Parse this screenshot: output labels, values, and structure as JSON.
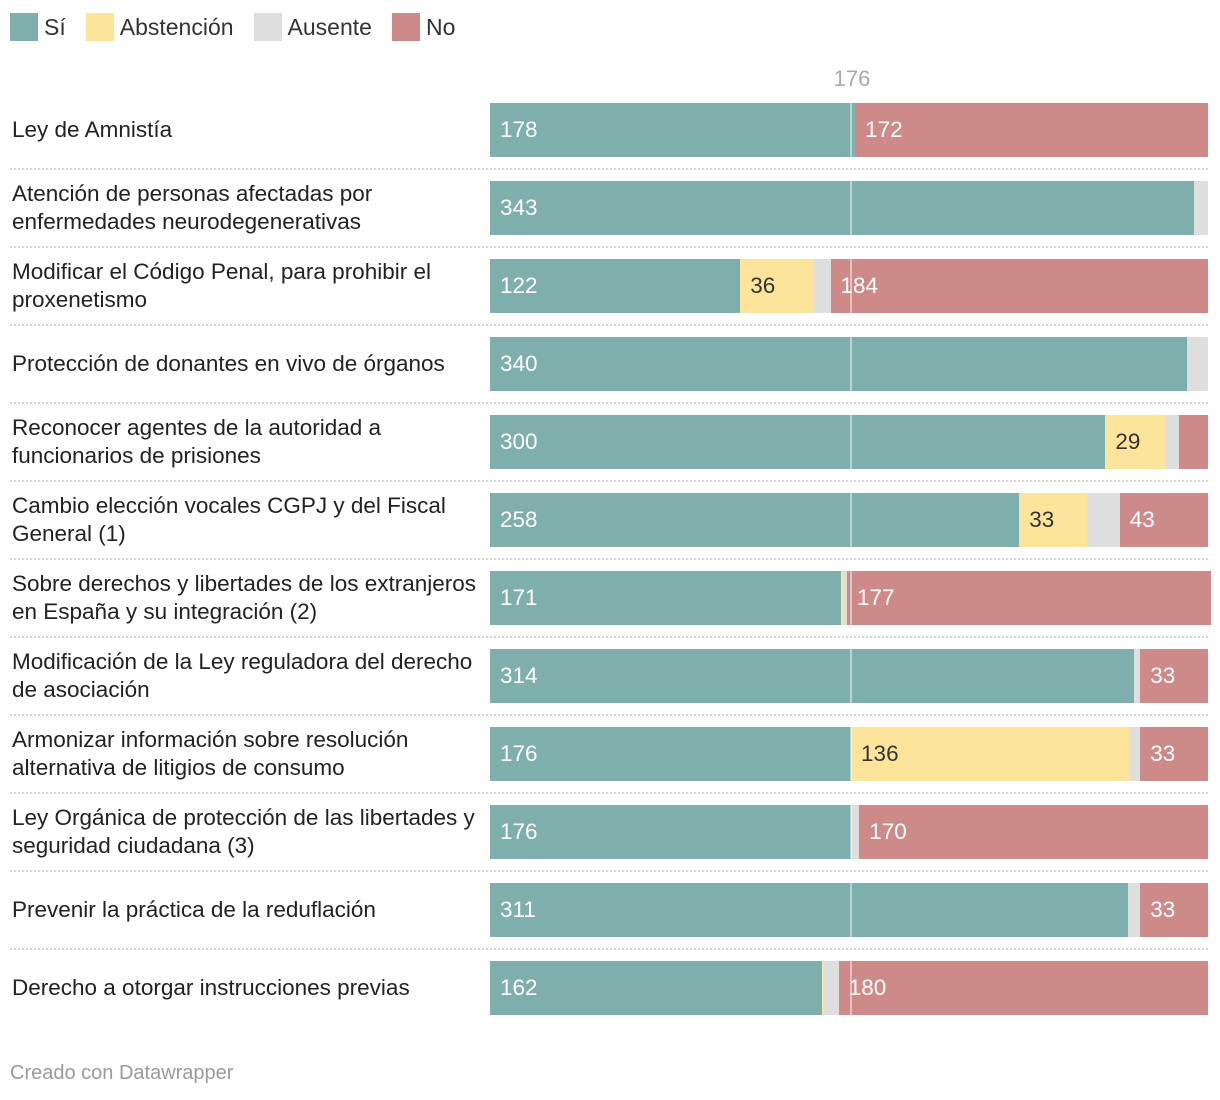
{
  "legend": [
    {
      "key": "si",
      "label": "Sí",
      "color": "#7eafad"
    },
    {
      "key": "abstencion",
      "label": "Abstención",
      "color": "#fde49b"
    },
    {
      "key": "ausente",
      "label": "Ausente",
      "color": "#dedede"
    },
    {
      "key": "no",
      "label": "No",
      "color": "#cd8a88"
    }
  ],
  "reference_label": "176",
  "footer": "Creado con Datawrapper",
  "chart_data": {
    "type": "bar",
    "orientation": "horizontal",
    "stacked": true,
    "title": "",
    "xlim": [
      0,
      350
    ],
    "reference_line": {
      "value": 176,
      "label": "176"
    },
    "series_names": [
      "Sí",
      "Abstención",
      "Ausente",
      "No"
    ],
    "categories": [
      "Ley de Amnistía",
      "Atención de personas afectadas por enfermedades neurodegenerativas",
      "Modificar el Código Penal, para prohibir el proxenetismo",
      "Protección de donantes en vivo de órganos",
      "Reconocer agentes de la autoridad a funcionarios de prisiones",
      "Cambio elección vocales CGPJ y del Fiscal General (1)",
      "Sobre derechos y libertades de los extranjeros en España y su integración (2)",
      "Modificación de la Ley reguladora del derecho de asociación",
      "Armonizar información sobre resolución alternativa de litigios de consumo",
      "Ley Orgánica de protección de las libertades y seguridad ciudadana (3)",
      "Prevenir la práctica de la reduflación",
      "Derecho a otorgar instrucciones previas"
    ],
    "rows": [
      {
        "label": "Ley de Amnistía",
        "si": 178,
        "abstencion": 0,
        "ausente": 0,
        "no": 172,
        "si_label": "178",
        "abstencion_label": "",
        "no_label": "172"
      },
      {
        "label": "Atención de personas afectadas por enfermedades neurodegenerativas",
        "si": 343,
        "abstencion": 0,
        "ausente": 7,
        "no": 0,
        "si_label": "343",
        "abstencion_label": "",
        "no_label": ""
      },
      {
        "label": "Modificar el Código Penal, para prohibir el proxenetismo",
        "si": 122,
        "abstencion": 36,
        "ausente": 8,
        "no": 184,
        "si_label": "122",
        "abstencion_label": "36",
        "no_label": "184"
      },
      {
        "label": "Protección de donantes en vivo de órganos",
        "si": 340,
        "abstencion": 0,
        "ausente": 10,
        "no": 0,
        "si_label": "340",
        "abstencion_label": "",
        "no_label": ""
      },
      {
        "label": "Reconocer agentes de la autoridad a funcionarios de prisiones",
        "si": 300,
        "abstencion": 29,
        "ausente": 7,
        "no": 14,
        "si_label": "300",
        "abstencion_label": "29",
        "no_label": ""
      },
      {
        "label": "Cambio elección vocales CGPJ y del Fiscal General (1)",
        "si": 258,
        "abstencion": 33,
        "ausente": 16,
        "no": 43,
        "si_label": "258",
        "abstencion_label": "33",
        "no_label": "43"
      },
      {
        "label": "Sobre derechos y libertades de los extranjeros en España y su integración (2)",
        "si": 171,
        "abstencion": 1,
        "ausente": 2,
        "no": 177,
        "si_label": "171",
        "abstencion_label": "",
        "no_label": "177"
      },
      {
        "label": "Modificación de la Ley reguladora del derecho de asociación",
        "si": 314,
        "abstencion": 0,
        "ausente": 3,
        "no": 33,
        "si_label": "314",
        "abstencion_label": "",
        "no_label": "33"
      },
      {
        "label": "Armonizar información sobre resolución alternativa de litigios de consumo",
        "si": 176,
        "abstencion": 136,
        "ausente": 5,
        "no": 33,
        "si_label": "176",
        "abstencion_label": "136",
        "no_label": "33"
      },
      {
        "label": "Ley Orgánica de protección de las libertades y seguridad ciudadana (3)",
        "si": 176,
        "abstencion": 0,
        "ausente": 4,
        "no": 170,
        "si_label": "176",
        "abstencion_label": "",
        "no_label": "170"
      },
      {
        "label": "Prevenir la práctica de la reduflación",
        "si": 311,
        "abstencion": 0,
        "ausente": 6,
        "no": 33,
        "si_label": "311",
        "abstencion_label": "",
        "no_label": "33"
      },
      {
        "label": "Derecho a otorgar instrucciones previas",
        "si": 162,
        "abstencion": 1,
        "ausente": 7,
        "no": 180,
        "si_label": "162",
        "abstencion_label": "",
        "no_label": "180"
      }
    ]
  }
}
